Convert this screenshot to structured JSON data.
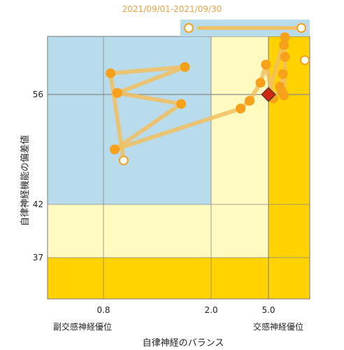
{
  "date_range": "2021/09/01-2021/09/30",
  "colors": {
    "sympathetic_dominant": "#ffd200",
    "zone_light_yellow": "#fffbc0",
    "zone_blue": "#b8dcec",
    "series_orange": "#f7a11a",
    "line_orange": "#f2c060",
    "current_marker": "#cc2a10",
    "grid": "#888888"
  },
  "chart_data": {
    "type": "scatter",
    "xlabel": "自律神経のバランス",
    "ylabel": "自律神経機能の偏差値",
    "x_tick_labels": [
      "0.8",
      "2.0",
      "5.0"
    ],
    "x_ticks": [
      0.8,
      2.0,
      5.0
    ],
    "x_scale": "log",
    "x_axis_notes": {
      "left": "副交感神経優位",
      "right": "交感神経優位"
    },
    "y_ticks": [
      37,
      42,
      56
    ],
    "y_range_label": "deviation score",
    "points": [
      {
        "x": 0.85,
        "y": 58.7
      },
      {
        "x": 1.6,
        "y": 59.5
      },
      {
        "x": 0.9,
        "y": 56.2
      },
      {
        "x": 1.55,
        "y": 54.8
      },
      {
        "x": 0.88,
        "y": 49.0
      },
      {
        "x": 3.2,
        "y": 54.2
      },
      {
        "x": 3.7,
        "y": 55.2
      },
      {
        "x": 4.4,
        "y": 57.5
      },
      {
        "x": 4.8,
        "y": 59.8
      },
      {
        "x": 5.4,
        "y": 55.5
      },
      {
        "x": 6.0,
        "y": 57.0
      },
      {
        "x": 6.3,
        "y": 58.6
      },
      {
        "x": 6.2,
        "y": 56.4
      },
      {
        "x": 6.4,
        "y": 55.9
      },
      {
        "x": 6.5,
        "y": 60.8
      },
      {
        "x": 6.4,
        "y": 62.3
      },
      {
        "x": 6.5,
        "y": 63.3
      }
    ],
    "start_point": {
      "x": 0.95,
      "y": 47.6
    },
    "current_point": {
      "x": 5.0,
      "y": 56.0
    },
    "offscale_marker": {
      "x_from": 1.8,
      "x_to": 6.2
    }
  }
}
